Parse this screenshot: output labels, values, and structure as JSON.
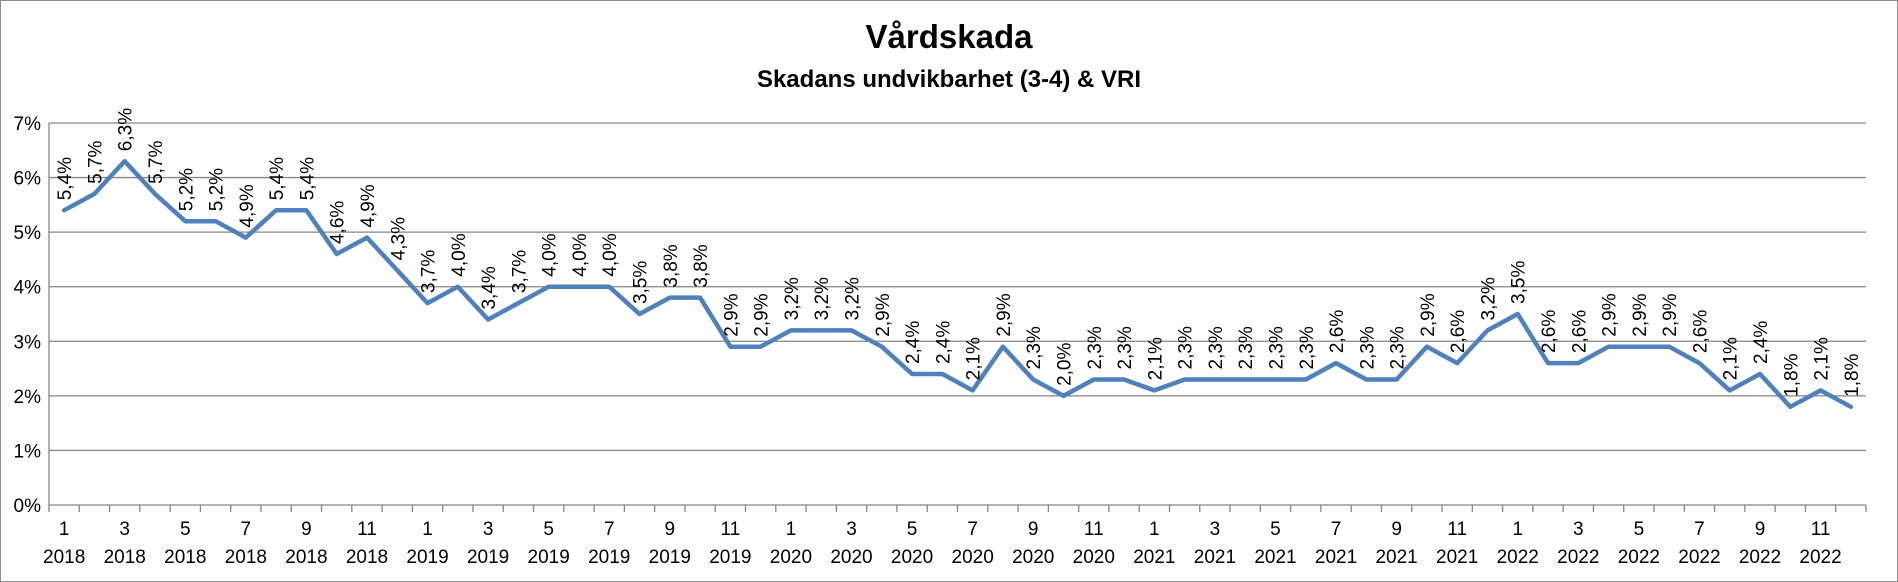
{
  "chart_data": {
    "type": "line",
    "title": "Vårdskada",
    "subtitle": "Skadans undvikbarhet (3-4) & VRI",
    "xlabel": "",
    "ylabel": "",
    "ylim": [
      0,
      7
    ],
    "yticks": [
      "0%",
      "1%",
      "2%",
      "3%",
      "4%",
      "5%",
      "6%",
      "7%"
    ],
    "grid": true,
    "legend": "none",
    "series_color": "#4f81bd",
    "x_tick_months": [
      "1",
      "3",
      "5",
      "7",
      "9",
      "11",
      "1",
      "3",
      "5",
      "7",
      "9",
      "11",
      "1",
      "3",
      "5",
      "7",
      "9",
      "11",
      "1",
      "3",
      "5",
      "7",
      "9",
      "11",
      "1",
      "3",
      "5",
      "7",
      "9",
      "11"
    ],
    "x_tick_years": [
      "2018",
      "2018",
      "2018",
      "2018",
      "2018",
      "2018",
      "2019",
      "2019",
      "2019",
      "2019",
      "2019",
      "2019",
      "2020",
      "2020",
      "2020",
      "2020",
      "2020",
      "2020",
      "2021",
      "2021",
      "2021",
      "2021",
      "2021",
      "2021",
      "2022",
      "2022",
      "2022",
      "2022",
      "2022",
      "2022"
    ],
    "values": [
      5.4,
      5.7,
      6.3,
      5.7,
      5.2,
      5.2,
      4.9,
      5.4,
      5.4,
      4.6,
      4.9,
      4.3,
      3.7,
      4.0,
      3.4,
      3.7,
      4.0,
      4.0,
      4.0,
      3.5,
      3.8,
      3.8,
      2.9,
      2.9,
      3.2,
      3.2,
      3.2,
      2.9,
      2.4,
      2.4,
      2.1,
      2.9,
      2.3,
      2.0,
      2.3,
      2.3,
      2.1,
      2.3,
      2.3,
      2.3,
      2.3,
      2.3,
      2.6,
      2.3,
      2.3,
      2.9,
      2.6,
      3.2,
      3.5,
      2.6,
      2.6,
      2.9,
      2.9,
      2.9,
      2.6,
      2.1,
      2.4,
      1.8,
      2.1,
      1.8
    ],
    "data_labels": [
      "5,4%",
      "5,7%",
      "6,3%",
      "5,7%",
      "5,2%",
      "5,2%",
      "4,9%",
      "5,4%",
      "5,4%",
      "4,6%",
      "4,9%",
      "4,3%",
      "3,7%",
      "4,0%",
      "3,4%",
      "3,7%",
      "4,0%",
      "4,0%",
      "4,0%",
      "3,5%",
      "3,8%",
      "3,8%",
      "2,9%",
      "2,9%",
      "3,2%",
      "3,2%",
      "3,2%",
      "2,9%",
      "2,4%",
      "2,4%",
      "2,1%",
      "2,9%",
      "2,3%",
      "2,0%",
      "2,3%",
      "2,3%",
      "2,1%",
      "2,3%",
      "2,3%",
      "2,3%",
      "2,3%",
      "2,3%",
      "2,6%",
      "2,3%",
      "2,3%",
      "2,9%",
      "2,6%",
      "3,2%",
      "3,5%",
      "2,6%",
      "2,6%",
      "2,9%",
      "2,9%",
      "2,9%",
      "2,6%",
      "2,1%",
      "2,4%",
      "1,8%",
      "2,1%",
      "1,8%"
    ]
  }
}
